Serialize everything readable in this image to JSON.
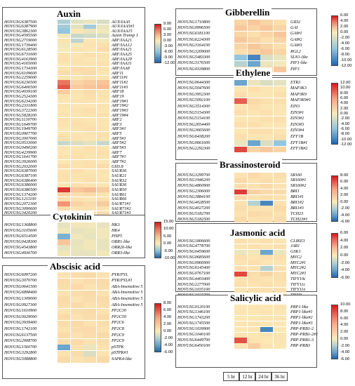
{
  "time_points": [
    "5 hr",
    "12 hr",
    "24 hr",
    "36 hr"
  ],
  "panels": [
    {
      "title": "Auxin",
      "scale": [
        "9.00",
        "6.00",
        "3.00",
        "0.00",
        "-3.00",
        "-6.00",
        "-9.00",
        "-12.00"
      ],
      "rows": [
        [
          "HOVUSG6387500",
          "AUX/IAA5"
        ],
        [
          "HOVUSG6387900",
          "AUX/IAA5#1"
        ],
        [
          "HOVUSG3862300",
          "AUX/IAA15"
        ],
        [
          "HOVUSG4595500",
          "Auxin Transp 1"
        ],
        [
          "HOVUSG2719000",
          "ARF/IAA21"
        ],
        [
          "HOVUSG1739400",
          "ARF/IAA12"
        ],
        [
          "HOVUSG6128500",
          "ARF/IAA21"
        ],
        [
          "HOVUSG6731600",
          "ARF/IAA25"
        ],
        [
          "HOVUSG4163900",
          "ARF/IAA29"
        ],
        [
          "HOVUSG4165000",
          "ARF/IAA31"
        ],
        [
          "HOVUSG1734300",
          "ARF/IAA8"
        ],
        [
          "HOVUSG6109600",
          "ARF11"
        ],
        [
          "HOVUSG2259000",
          "ARF11#1"
        ],
        [
          "HOVUSG6236500",
          "ARF11#2"
        ],
        [
          "HOVUSG6406500",
          "ARF11#3"
        ],
        [
          "HOVUSG4039100",
          "ARF18"
        ],
        [
          "HOVUSG2524300",
          "ARF19"
        ],
        [
          "HOVUSG6234200",
          "ARF19#1"
        ],
        [
          "HOVUSG2331800",
          "ARF19#2"
        ],
        [
          "HOVUSG3722300",
          "ARF19#3"
        ],
        [
          "HOVUSG5828200",
          "ARF19#4"
        ],
        [
          "HOVUSG1130700",
          "ARF2"
        ],
        [
          "HOVUSG1649700",
          "ARF3"
        ],
        [
          "HOVUSG1949700",
          "ARF3#1"
        ],
        [
          "HOVUSG0907700",
          "ARF5"
        ],
        [
          "HOVUSG3007000",
          "ARF5#1"
        ],
        [
          "HOVUSG0533000",
          "ARF5#2"
        ],
        [
          "HOVUSG0490200",
          "ARF5#3"
        ],
        [
          "HOVUSG4239900",
          "ARF7"
        ],
        [
          "HOVUSG1641700",
          "ARF7#1"
        ],
        [
          "HOVUSG3926000",
          "ARF7#2"
        ],
        [
          "HOVUSG2032000",
          "GH3.8"
        ],
        [
          "HOVUSG6387000",
          "SAUR36"
        ],
        [
          "HOVUSG6387100",
          "SAUR21"
        ],
        [
          "HOVUSG6386400",
          "SAUR32"
        ],
        [
          "HOVUSG6386000",
          "SAUR36"
        ],
        [
          "HOVUSG6386500",
          "SAUR50"
        ],
        [
          "HOVUSG1374200",
          "SAUR61"
        ],
        [
          "HOVUSG1211100",
          "SAUR66"
        ],
        [
          "HOVUSG2072300",
          "SAUR71#1"
        ],
        [
          "HOVUSG3090600",
          "SAUR71#2"
        ],
        [
          "HOVUSG3420200",
          "SAUR71#3"
        ],
        [
          "HOVUSG1564700",
          "SAUR71#4"
        ],
        [
          "HOVUSG4896400",
          "SAUR71#5"
        ],
        [
          "HOVUSG4896600",
          "SAUR71#6"
        ]
      ],
      "values": [
        [
          -4.5,
          -1.5,
          -1.0,
          -2.0
        ],
        [
          -5.0,
          -1.5,
          -5.0,
          -1.0
        ],
        [
          -6.0,
          0.3,
          -1.0,
          -0.5
        ],
        [
          -0.5,
          -3.0,
          -2.5,
          -2.0
        ],
        [
          0.5,
          -3.5,
          0.3,
          -0.5
        ],
        [
          -0.5,
          -0.3,
          0.5,
          0.8
        ],
        [
          -0.3,
          0.5,
          0.3,
          1.0
        ],
        [
          0.5,
          0.3,
          0.8,
          0.5
        ],
        [
          0.8,
          0.5,
          0.3,
          0.3
        ],
        [
          0.3,
          0.5,
          0.5,
          0.8
        ],
        [
          0.5,
          1.0,
          0.8,
          0.5
        ],
        [
          1.0,
          0.8,
          1.0,
          0.3
        ],
        [
          0.5,
          0.3,
          0.8,
          0.5
        ],
        [
          6.0,
          1.5,
          2.0,
          2.5
        ],
        [
          7.0,
          2.0,
          2.5,
          3.0
        ],
        [
          2.0,
          0.5,
          1.0,
          0.5
        ],
        [
          0.5,
          0.3,
          0.8,
          0.5
        ],
        [
          0.3,
          0.5,
          0.5,
          0.3
        ],
        [
          0.5,
          0.3,
          0.3,
          0.5
        ],
        [
          0.3,
          0.5,
          0.8,
          0.3
        ],
        [
          0.5,
          0.3,
          0.5,
          0.8
        ],
        [
          0.8,
          0.5,
          0.3,
          0.5
        ],
        [
          0.5,
          0.8,
          0.5,
          0.3
        ],
        [
          0.3,
          0.5,
          0.8,
          0.5
        ],
        [
          0.5,
          0.3,
          0.5,
          0.8
        ],
        [
          0.8,
          0.5,
          0.3,
          0.5
        ],
        [
          -3.0,
          -2.0,
          -1.5,
          -3.0
        ],
        [
          0.5,
          0.3,
          0.8,
          0.5
        ],
        [
          0.3,
          0.5,
          0.5,
          0.8
        ],
        [
          0.5,
          0.8,
          0.3,
          0.5
        ],
        [
          0.3,
          0.5,
          0.8,
          0.3
        ],
        [
          1.0,
          0.5,
          0.8,
          1.0
        ],
        [
          0.5,
          0.8,
          0.3,
          0.5
        ],
        [
          0.8,
          0.5,
          0.5,
          0.3
        ],
        [
          0.5,
          0.3,
          0.8,
          0.5
        ],
        [
          0.3,
          0.8,
          0.5,
          0.5
        ],
        [
          8.0,
          2.5,
          3.0,
          2.0
        ],
        [
          1.5,
          0.8,
          1.0,
          0.5
        ],
        [
          0.8,
          0.5,
          0.3,
          0.8
        ],
        [
          5.0,
          1.5,
          1.0,
          2.0
        ],
        [
          1.0,
          0.5,
          0.8,
          0.5
        ],
        [
          0.5,
          0.8,
          0.5,
          1.0
        ],
        [
          0.8,
          0.5,
          1.0,
          0.5
        ],
        [
          1.0,
          0.8,
          0.5,
          0.8
        ],
        [
          0.5,
          1.0,
          0.8,
          0.5
        ]
      ]
    },
    {
      "title": "Cytokinin",
      "scale": [
        "15.00",
        "10.00",
        "5.00",
        "0.00",
        "-5.00",
        "-10.00"
      ],
      "rows": [
        [
          "HOVUSG1368800",
          "HK3"
        ],
        [
          "HOVUSG3105600",
          "HK4"
        ],
        [
          "HOVUSG6514500",
          "PHP5"
        ],
        [
          "HOVUSG0428300",
          "ORR1-like"
        ],
        [
          "HOVUSG4543800",
          "ORR26-like"
        ],
        [
          "HOVUSG4936700",
          "ORR3-like"
        ]
      ],
      "values": [
        [
          -1.0,
          -0.5,
          -0.5,
          -1.0
        ],
        [
          -0.5,
          -1.0,
          -0.8,
          -0.5
        ],
        [
          -6.0,
          -0.5,
          -1.0,
          -0.5
        ],
        [
          4.0,
          -1.0,
          -0.5,
          -1.0
        ],
        [
          -1.0,
          -0.8,
          -0.5,
          -1.0
        ],
        [
          -0.5,
          -1.0,
          -1.0,
          -0.5
        ]
      ]
    },
    {
      "title": "Abscisic acid",
      "scale": [
        "8.00",
        "6.00",
        "4.00",
        "2.00",
        "0.00",
        "-2.00",
        "-4.00",
        "-6.00"
      ],
      "rows": [
        [
          "HOVUSG6097200",
          "PYR/PYL"
        ],
        [
          "HOVUSG3070700",
          "PYR/PYL#1"
        ],
        [
          "HOVUSG0641500",
          "ABA-Insensitive 5"
        ],
        [
          "HOVUSG6898400",
          "ABA-Insensitive 5"
        ],
        [
          "HOVUSG1309000",
          "ABA-Insensitive 5"
        ],
        [
          "HOVUSG0927300",
          "ABA-Insensitive 5"
        ],
        [
          "HOVUSG1610900",
          "PP2C30"
        ],
        [
          "HOVUSG0029000",
          "PP2C50"
        ],
        [
          "HOVUSG3939400",
          "PP2C6"
        ],
        [
          "HOVUSG1742100",
          "PP2C8"
        ],
        [
          "HOVUSG6137500",
          "PP2C9"
        ],
        [
          "HOVUSG2908700",
          "PP2C9"
        ],
        [
          "HOVUSG1560700",
          "pSTPK"
        ],
        [
          "HOVUSG3292800",
          "pSTPK#1"
        ],
        [
          "HOVUSG5088800",
          "SAPK4-like"
        ]
      ],
      "values": [
        [
          0.5,
          0.8,
          1.0,
          0.5
        ],
        [
          1.0,
          0.5,
          0.8,
          1.0
        ],
        [
          0.8,
          1.0,
          0.5,
          0.8
        ],
        [
          0.5,
          0.8,
          1.0,
          0.5
        ],
        [
          1.0,
          0.5,
          0.8,
          1.0
        ],
        [
          0.8,
          1.0,
          0.5,
          0.8
        ],
        [
          0.5,
          0.8,
          1.0,
          0.5
        ],
        [
          1.0,
          0.5,
          0.8,
          1.0
        ],
        [
          0.8,
          1.0,
          0.5,
          0.8
        ],
        [
          0.5,
          0.8,
          1.0,
          0.5
        ],
        [
          1.0,
          0.5,
          0.8,
          1.0
        ],
        [
          0.8,
          1.0,
          0.5,
          0.8
        ],
        [
          -4.0,
          0.5,
          -0.5,
          0.5
        ],
        [
          0.5,
          0.8,
          -1.0,
          0.5
        ],
        [
          1.0,
          0.5,
          0.8,
          1.0
        ]
      ]
    },
    {
      "title": "Gibberellin",
      "scale": [
        "6.00",
        "4.00",
        "2.00",
        "0.00",
        "-2.00",
        "-4.00",
        "-6.00",
        "-8.00",
        "-10.00",
        "-12.00"
      ],
      "rows": [
        [
          "HOVUSG1710800",
          "GID2"
        ],
        [
          "HOVUSG0996500",
          "GAI"
        ],
        [
          "HOVUSG6181100",
          "GAI#1"
        ],
        [
          "HOVUSG6224300",
          "GAI#2"
        ],
        [
          "HOVUSG3164100",
          "GAI#3"
        ],
        [
          "HOVUSG3209000",
          "RGL2"
        ],
        [
          "HOVUSG5483300",
          "SLN1-like"
        ],
        [
          "HOVUSG3176500",
          "PIF1-like"
        ],
        [
          "HOVUSG0339800",
          "PIF3"
        ]
      ],
      "values": [
        [
          1.0,
          1.5,
          1.0,
          0.5
        ],
        [
          1.5,
          1.0,
          1.5,
          1.0
        ],
        [
          1.0,
          0.5,
          1.0,
          1.5
        ],
        [
          1.5,
          1.0,
          0.5,
          1.0
        ],
        [
          1.0,
          1.5,
          1.0,
          0.5
        ],
        [
          0.5,
          1.0,
          1.5,
          1.0
        ],
        [
          -6.0,
          -10.0,
          -2.0,
          -1.0
        ],
        [
          -4.0,
          -8.0,
          -1.0,
          -0.5
        ],
        [
          1.0,
          0.5,
          1.0,
          1.5
        ]
      ]
    },
    {
      "title": "Ethylene",
      "scale": [
        "12.00",
        "10.00",
        "8.00",
        "6.00",
        "4.00",
        "2.00",
        "0.00",
        "-2.00",
        "-4.00",
        "-6.00",
        "-8.00",
        "-10.00",
        "-12.00"
      ],
      "rows": [
        [
          "HOVUSG0644300",
          "ETR3"
        ],
        [
          "HOVUSG5047600",
          "MAP3K3"
        ],
        [
          "HOVUSG3952300",
          "MAP3K9"
        ],
        [
          "HOVUSG5092100",
          "MAP3K9#1"
        ],
        [
          "HOVUSG3514300",
          "EIN3"
        ],
        [
          "HOVUSG5154300",
          "EIN3#1"
        ],
        [
          "HOVUSG5154100",
          "EIN3#2"
        ],
        [
          "HOVUSG2654400",
          "EIN3#3"
        ],
        [
          "HOVUSG3665600",
          "EIN3#4"
        ],
        [
          "HOVUSG6438200",
          "EFF1B"
        ],
        [
          "HOVUSG0661600",
          "EFF1B#1"
        ],
        [
          "HOVUSG2292300",
          "EFF1B#2"
        ]
      ],
      "values": [
        [
          -8.0,
          -1.0,
          -2.0,
          -1.5
        ],
        [
          0.5,
          1.0,
          0.5,
          0.5
        ],
        [
          1.0,
          0.5,
          0.5,
          1.0
        ],
        [
          9.0,
          1.5,
          1.0,
          1.0
        ],
        [
          0.5,
          1.0,
          0.5,
          0.5
        ],
        [
          1.0,
          0.5,
          1.0,
          0.5
        ],
        [
          0.5,
          0.5,
          1.0,
          1.0
        ],
        [
          1.0,
          1.0,
          0.5,
          0.5
        ],
        [
          0.5,
          1.0,
          1.0,
          0.5
        ],
        [
          1.0,
          0.5,
          0.5,
          1.0
        ],
        [
          -1.0,
          -8.0,
          -2.0,
          -6.0
        ],
        [
          10.0,
          2.0,
          3.0,
          2.0
        ]
      ]
    },
    {
      "title": "Brassinosteroid",
      "scale": [
        "8.00",
        "6.00",
        "4.00",
        "2.00",
        "0.00",
        "-2.00",
        "-4.00",
        "-6.00"
      ],
      "rows": [
        [
          "HOVUSG3299700",
          "SR160"
        ],
        [
          "HOVUSG1946200",
          "SR160#1"
        ],
        [
          "HOVUSG4860900",
          "SR160#2"
        ],
        [
          "HOVUSG2306000",
          "BRI1"
        ],
        [
          "HOVUSG3884100",
          "BRI1#1"
        ],
        [
          "HOVUSG4028500",
          "BRI1#2"
        ],
        [
          "HOVUSG4027200",
          "BRI1#3"
        ],
        [
          "HOVUSG5182700",
          "TCH23"
        ],
        [
          "HOVUSG5182500",
          "TCH23#1"
        ]
      ],
      "values": [
        [
          0.5,
          1.0,
          0.5,
          0.8
        ],
        [
          1.0,
          0.5,
          0.8,
          0.5
        ],
        [
          0.8,
          0.5,
          1.0,
          0.5
        ],
        [
          7.0,
          1.5,
          1.0,
          1.0
        ],
        [
          1.0,
          0.5,
          0.8,
          0.5
        ],
        [
          0.5,
          -2.0,
          -5.0,
          0.5
        ],
        [
          0.8,
          0.5,
          0.5,
          1.0
        ],
        [
          0.5,
          1.0,
          0.8,
          0.5
        ],
        [
          1.0,
          0.5,
          0.5,
          0.8
        ]
      ]
    },
    {
      "title": "Jasmonic acid",
      "scale": [
        "6.00",
        "4.00",
        "2.00",
        "0.00",
        "-2.00",
        "-4.00",
        "-6.00"
      ],
      "rows": [
        [
          "HOVUSG1806600",
          "CLIKE3"
        ],
        [
          "HOVUSG4778700",
          "JAR1"
        ],
        [
          "HOVUSG0459600",
          "GSK1"
        ],
        [
          "HOVUSG0685600",
          "MYC2"
        ],
        [
          "HOVUSG0966900",
          "MYC2#1"
        ],
        [
          "HOVUSG6145400",
          "MYC2#2"
        ],
        [
          "HOVUSG0767100",
          "MYC2#3"
        ],
        [
          "HOVUSG4403400",
          "TIFY10c"
        ],
        [
          "HOVUSG2277000",
          "TIFY11c"
        ],
        [
          "HOVUSG1035100",
          "TIFY11e"
        ],
        [
          "HOVUSG1023700",
          "TIFY9"
        ]
      ],
      "values": [
        [
          0.5,
          0.3,
          0.5,
          0.3
        ],
        [
          0.3,
          0.5,
          0.3,
          0.5
        ],
        [
          -0.5,
          -0.3,
          -4.0,
          -0.5
        ],
        [
          0.5,
          0.3,
          0.5,
          0.5
        ],
        [
          0.3,
          0.5,
          0.3,
          0.3
        ],
        [
          0.5,
          0.3,
          -2.0,
          0.5
        ],
        [
          5.0,
          0.5,
          1.0,
          0.5
        ],
        [
          0.3,
          0.5,
          0.3,
          0.5
        ],
        [
          0.5,
          0.3,
          0.5,
          0.3
        ],
        [
          0.3,
          0.5,
          0.5,
          0.5
        ],
        [
          0.5,
          0.5,
          0.3,
          0.5
        ]
      ]
    },
    {
      "title": "Salicylic acid",
      "scale": [
        "10.00",
        "8.00",
        "6.00",
        "4.00",
        "2.00",
        "0.00",
        "-2.00",
        "-4.00",
        "-6.00"
      ],
      "rows": [
        [
          "HOVUSG0120100",
          "PRP1-like"
        ],
        [
          "HOVUSG1346100",
          "PRP1-like#1"
        ],
        [
          "HOVUSG1743200",
          "PRP1-like#2"
        ],
        [
          "HOVUSG1745500",
          "PRP1-like#3"
        ],
        [
          "HOVUSG1039900",
          "PRP-PRB1-2"
        ],
        [
          "HOVUSG1040100",
          "PRP-PRB1-2#1"
        ],
        [
          "HOVUSG6449700",
          "PRP-PRB1-3"
        ],
        [
          "HOVUSG6450100",
          "PRP-PRB3"
        ]
      ],
      "values": [
        [
          0.3,
          0.5,
          0.3,
          0.5
        ],
        [
          0.5,
          0.3,
          0.5,
          0.3
        ],
        [
          0.3,
          0.3,
          0.5,
          0.5
        ],
        [
          0.5,
          0.5,
          0.3,
          0.3
        ],
        [
          0.3,
          0.5,
          -5.0,
          0.3
        ],
        [
          0.5,
          0.3,
          0.5,
          0.5
        ],
        [
          8.0,
          0.5,
          0.3,
          0.5
        ],
        [
          0.5,
          2.0,
          0.5,
          0.3
        ]
      ]
    }
  ],
  "colors": {
    "high": "#d7191c",
    "mid_high": "#f4a582",
    "neutral": "#fcebb6",
    "mid_low": "#92c5de",
    "low": "#2166ac"
  }
}
